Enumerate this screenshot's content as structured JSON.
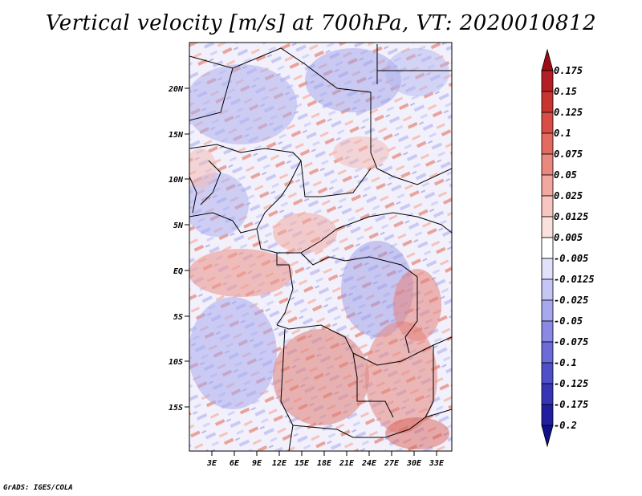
{
  "title": "Vertical velocity [m/s] at 700hPa, VT: 2020010812",
  "credit": "GrADS: IGES/COLA",
  "map": {
    "lat_ticks": [
      "20N",
      "15N",
      "10N",
      "5N",
      "EQ",
      "5S",
      "10S",
      "15S"
    ],
    "lon_ticks": [
      "3E",
      "6E",
      "9E",
      "12E",
      "15E",
      "18E",
      "21E",
      "24E",
      "27E",
      "30E",
      "33E"
    ],
    "lat_values": [
      20,
      15,
      10,
      5,
      0,
      -5,
      -10,
      -15
    ],
    "lon_values": [
      3,
      6,
      9,
      12,
      15,
      18,
      21,
      24,
      27,
      30,
      33
    ],
    "lon_range": [
      0,
      35
    ],
    "lat_range": [
      -20,
      24.5
    ]
  },
  "colorbar": {
    "labels": [
      "0.175",
      "0.15",
      "0.125",
      "0.1",
      "0.075",
      "0.05",
      "0.025",
      "0.0125",
      "0.005",
      "-0.005",
      "-0.0125",
      "-0.025",
      "-0.05",
      "-0.075",
      "-0.1",
      "-0.125",
      "-0.175",
      "-0.2"
    ],
    "colors": [
      "#9e0d16",
      "#b31f24",
      "#c8342f",
      "#d94d45",
      "#e26a60",
      "#ea8880",
      "#f2a7a0",
      "#f7c6c0",
      "#fbe1dd",
      "#ffffff",
      "#e1e1fb",
      "#c6c6f5",
      "#a8a8ee",
      "#8a8ae5",
      "#6c6cd9",
      "#4f4fc9",
      "#3535b6",
      "#1f1fa0",
      "#10108a"
    ]
  }
}
